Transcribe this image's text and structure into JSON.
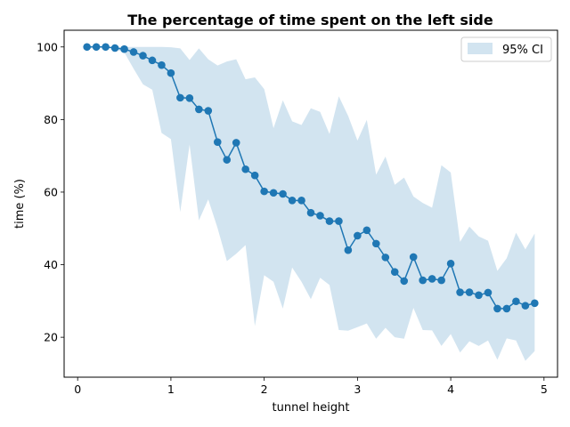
{
  "chart_data": {
    "type": "line",
    "title": "The percentage of time spent on the left side",
    "xlabel": "tunnel height",
    "ylabel": "time (%)",
    "xlim": [
      -0.145,
      5.145
    ],
    "ylim": [
      9,
      104.6
    ],
    "xticks": [
      0,
      1,
      2,
      3,
      4,
      5
    ],
    "yticks": [
      20,
      40,
      60,
      80,
      100
    ],
    "grid": false,
    "legend_position": "top-right",
    "legend": [
      {
        "label": "95% CI",
        "kind": "band"
      }
    ],
    "colors": {
      "line": "#1f77b4",
      "band": "#1f77b4"
    },
    "series": [
      {
        "kind": "mean",
        "x": [
          0.1,
          0.2,
          0.3,
          0.4,
          0.5,
          0.6,
          0.7,
          0.8,
          0.9,
          1.0,
          1.1,
          1.2,
          1.3,
          1.4,
          1.5,
          1.6,
          1.7,
          1.8,
          1.9,
          2.0,
          2.1,
          2.2,
          2.3,
          2.4,
          2.5,
          2.6,
          2.7,
          2.8,
          2.9,
          3.0,
          3.1,
          3.2,
          3.3,
          3.4,
          3.5,
          3.6,
          3.7,
          3.8,
          3.9,
          4.0,
          4.1,
          4.2,
          4.3,
          4.4,
          4.5,
          4.6,
          4.7,
          4.8,
          4.9
        ],
        "y": [
          100,
          100,
          100,
          99.7,
          99.4,
          98.6,
          97.6,
          96.3,
          95.0,
          92.8,
          86.0,
          85.9,
          82.8,
          82.4,
          73.8,
          68.9,
          73.6,
          66.3,
          64.6,
          60.2,
          59.8,
          59.5,
          57.7,
          57.7,
          54.3,
          53.5,
          52.0,
          52.0,
          44.0,
          48.0,
          49.5,
          45.8,
          42.0,
          38.0,
          35.5,
          42.1,
          35.7,
          36.1,
          35.7,
          40.3,
          32.4,
          32.4,
          31.6,
          32.3,
          27.9,
          27.9,
          29.9,
          28.7,
          29.4
        ]
      },
      {
        "kind": "ci95",
        "x": [
          0.1,
          0.2,
          0.3,
          0.4,
          0.5,
          0.6,
          0.7,
          0.8,
          0.9,
          1.0,
          1.1,
          1.2,
          1.3,
          1.4,
          1.5,
          1.6,
          1.7,
          1.8,
          1.9,
          2.0,
          2.1,
          2.2,
          2.3,
          2.4,
          2.5,
          2.6,
          2.7,
          2.8,
          2.9,
          3.0,
          3.1,
          3.2,
          3.3,
          3.4,
          3.5,
          3.6,
          3.7,
          3.8,
          3.9,
          4.0,
          4.1,
          4.2,
          4.3,
          4.4,
          4.5,
          4.6,
          4.7,
          4.8,
          4.9
        ],
        "lower": [
          100,
          100,
          100,
          99.4,
          98.5,
          94.0,
          89.7,
          88.2,
          76.3,
          74.6,
          54.5,
          73.1,
          52.2,
          58.0,
          50.1,
          41.0,
          43.0,
          45.4,
          23.1,
          37.1,
          35.3,
          27.9,
          39.2,
          35.3,
          30.5,
          36.4,
          34.4,
          22.0,
          21.8,
          22.8,
          23.8,
          19.6,
          22.6,
          20.0,
          19.6,
          28.1,
          22.0,
          21.9,
          17.6,
          20.9,
          15.8,
          18.9,
          17.6,
          19.1,
          13.8,
          19.7,
          19.1,
          13.5,
          16.2
        ],
        "upper": [
          100,
          100,
          100,
          100,
          100,
          100,
          100,
          100,
          100,
          99.9,
          99.6,
          96.4,
          99.6,
          96.6,
          94.9,
          96.0,
          96.6,
          91.1,
          91.6,
          88.4,
          77.6,
          85.3,
          79.5,
          78.5,
          83.1,
          82.1,
          76.0,
          86.4,
          81.0,
          74.2,
          79.9,
          64.8,
          69.8,
          62.0,
          64.0,
          58.8,
          57.0,
          55.7,
          67.4,
          65.4,
          46.3,
          50.5,
          47.8,
          46.6,
          38.3,
          41.8,
          48.8,
          44.2,
          48.6
        ]
      }
    ]
  }
}
